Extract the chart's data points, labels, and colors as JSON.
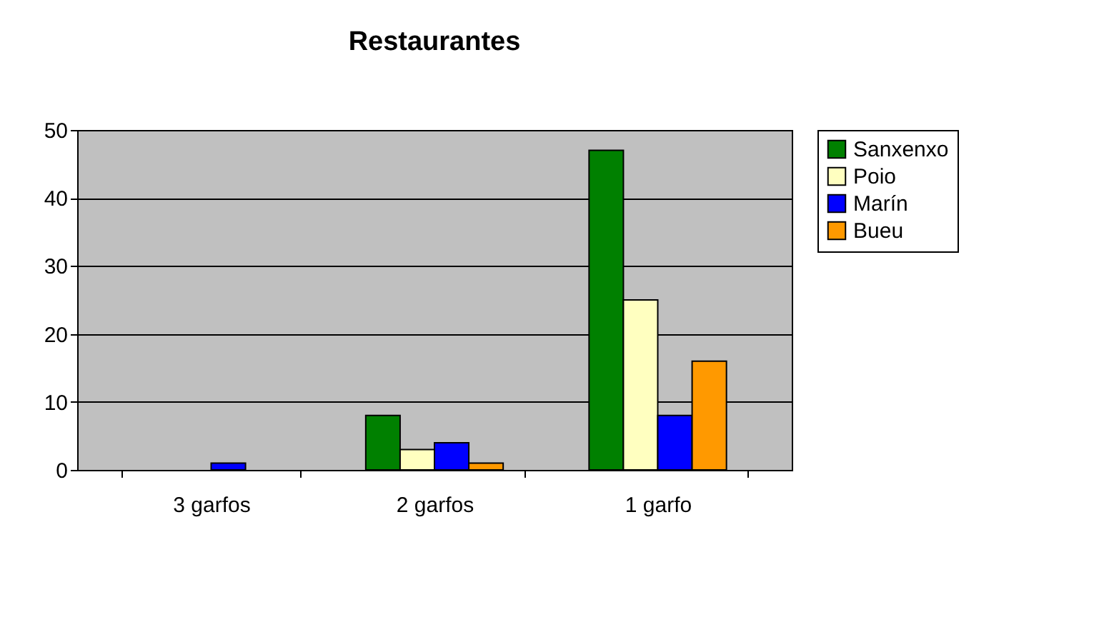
{
  "chart_data": {
    "type": "bar",
    "title": "Restaurantes",
    "categories": [
      "3 garfos",
      "2 garfos",
      "1 garfo"
    ],
    "series": [
      {
        "name": "Sanxenxo",
        "color": "#008000",
        "values": [
          0,
          8,
          47
        ]
      },
      {
        "name": "Poio",
        "color": "#ffffc0",
        "values": [
          0,
          3,
          25
        ]
      },
      {
        "name": "Marín",
        "color": "#0000ff",
        "values": [
          1,
          4,
          8
        ]
      },
      {
        "name": "Bueu",
        "color": "#ff9900",
        "values": [
          0,
          1,
          16
        ]
      }
    ],
    "ylim": [
      0,
      50
    ],
    "yticks": [
      0,
      10,
      20,
      30,
      40,
      50
    ],
    "grid": "y",
    "legend": "right"
  }
}
